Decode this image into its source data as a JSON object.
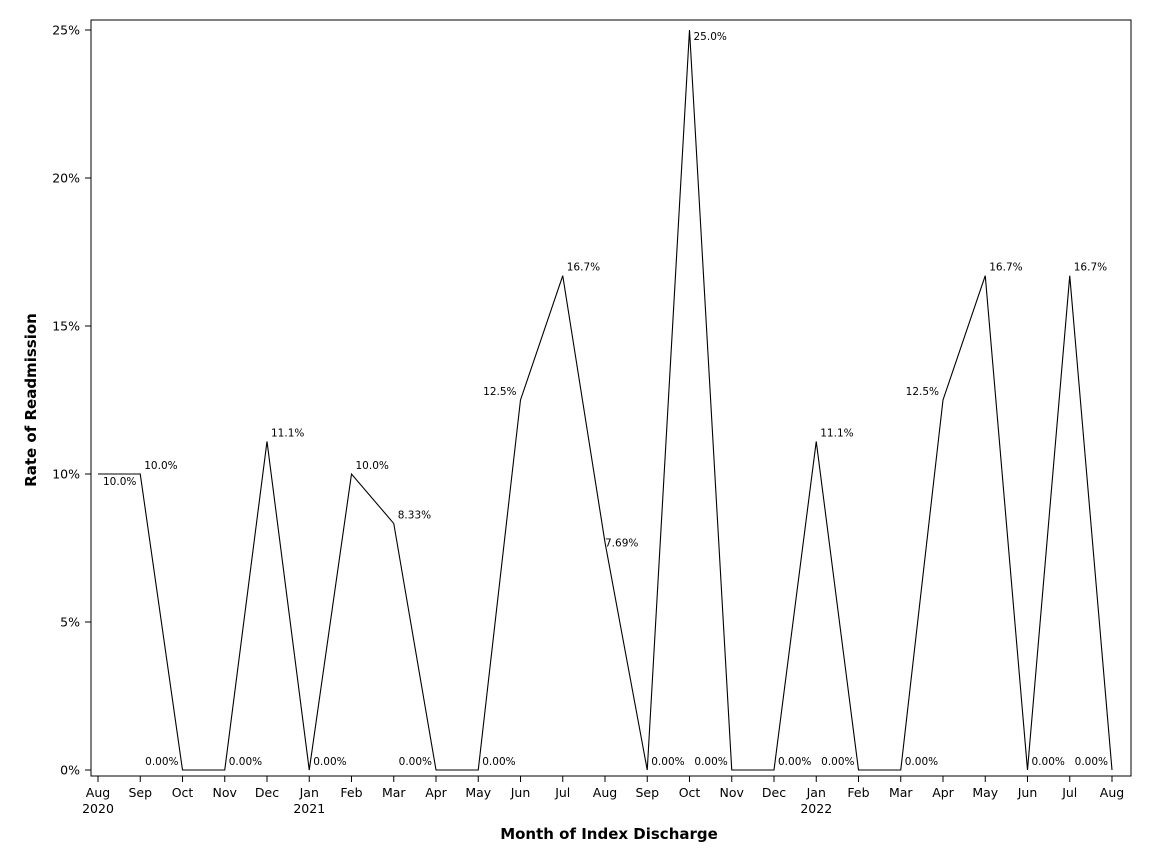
{
  "chart_data": {
    "type": "line",
    "title": "",
    "xlabel": "Month of Index Discharge",
    "ylabel": "Rate of Readmission",
    "ylim": [
      0,
      25
    ],
    "yticks": [
      "0%",
      "5%",
      "10%",
      "15%",
      "20%",
      "25%"
    ],
    "grid": false,
    "legend": "none",
    "x": [
      "Aug 2020",
      "Sep 2020",
      "Oct 2020",
      "Nov 2020",
      "Dec 2020",
      "Jan 2021",
      "Feb 2021",
      "Mar 2021",
      "Apr 2021",
      "May 2021",
      "Jun 2021",
      "Jul 2021",
      "Aug 2021",
      "Sep 2021",
      "Oct 2021",
      "Nov 2021",
      "Dec 2021",
      "Jan 2022",
      "Feb 2022",
      "Mar 2022",
      "Apr 2022",
      "May 2022",
      "Jun 2022",
      "Jul 2022",
      "Aug 2022"
    ],
    "x_tick_labels": [
      {
        "month": "Aug",
        "year": "2020"
      },
      {
        "month": "Sep",
        "year": ""
      },
      {
        "month": "Oct",
        "year": ""
      },
      {
        "month": "Nov",
        "year": ""
      },
      {
        "month": "Dec",
        "year": ""
      },
      {
        "month": "Jan",
        "year": "2021"
      },
      {
        "month": "Feb",
        "year": ""
      },
      {
        "month": "Mar",
        "year": ""
      },
      {
        "month": "Apr",
        "year": ""
      },
      {
        "month": "May",
        "year": ""
      },
      {
        "month": "Jun",
        "year": ""
      },
      {
        "month": "Jul",
        "year": ""
      },
      {
        "month": "Aug",
        "year": ""
      },
      {
        "month": "Sep",
        "year": ""
      },
      {
        "month": "Oct",
        "year": ""
      },
      {
        "month": "Nov",
        "year": ""
      },
      {
        "month": "Dec",
        "year": ""
      },
      {
        "month": "Jan",
        "year": "2022"
      },
      {
        "month": "Feb",
        "year": ""
      },
      {
        "month": "Mar",
        "year": ""
      },
      {
        "month": "Apr",
        "year": ""
      },
      {
        "month": "May",
        "year": ""
      },
      {
        "month": "Jun",
        "year": ""
      },
      {
        "month": "Jul",
        "year": ""
      },
      {
        "month": "Aug",
        "year": ""
      }
    ],
    "values": [
      10.0,
      10.0,
      0,
      0,
      11.1,
      0,
      10.0,
      8.33,
      0,
      0,
      12.5,
      16.7,
      7.69,
      0,
      25.0,
      0,
      0,
      11.1,
      0,
      0,
      12.5,
      16.7,
      0,
      16.7,
      0
    ],
    "data_labels": [
      "10.0%",
      "10.0%",
      "0.00%",
      "0.00%",
      "11.1%",
      "0.00%",
      "10.0%",
      "8.33%",
      "0.00%",
      "0.00%",
      "12.5%",
      "16.7%",
      "7.69%",
      "0.00%",
      "25.0%",
      "0.00%",
      "0.00%",
      "11.1%",
      "0.00%",
      "0.00%",
      "12.5%",
      "16.7%",
      "0.00%",
      "16.7%",
      "0.00%"
    ],
    "line_color": "#000000"
  }
}
